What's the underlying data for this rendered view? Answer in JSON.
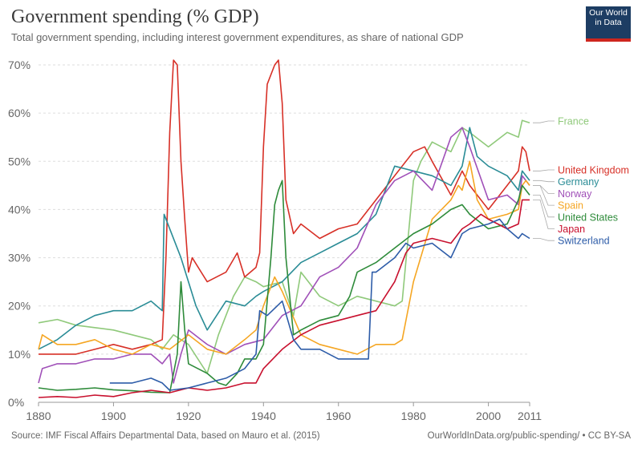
{
  "header": {
    "title": "Government spending (% GDP)",
    "subtitle": "Total government spending, including interest government expenditures, as share of national GDP",
    "logo_line1": "Our World",
    "logo_line2": "in Data"
  },
  "footer": {
    "source": "Source: IMF Fiscal Affairs Departmental Data, based on Mauro et al. (2015)",
    "link": "OurWorldInData.org/public-spending/ • CC BY-SA"
  },
  "colors": {
    "france": "#8fc97a",
    "uk": "#d73027",
    "germany": "#2a8c96",
    "norway": "#a050b8",
    "spain": "#f5a623",
    "us": "#2e8b3a",
    "japan": "#c8102e",
    "switzerland": "#2d5ca8"
  },
  "chart_data": {
    "type": "line",
    "title": "Government spending (% GDP)",
    "subtitle": "Total government spending, including interest government expenditures, as share of national GDP",
    "xlabel": "",
    "ylabel": "",
    "xlim": [
      1880,
      2011
    ],
    "ylim": [
      0,
      70
    ],
    "x_ticks": [
      1880,
      1900,
      1920,
      1940,
      1960,
      1980,
      2000,
      2011
    ],
    "x_tick_labels": [
      "1880",
      "1900",
      "1920",
      "1940",
      "1960",
      "1980",
      "2000",
      "2011"
    ],
    "y_ticks": [
      0,
      10,
      20,
      30,
      40,
      50,
      60,
      70
    ],
    "y_tick_labels": [
      "0%",
      "10%",
      "20%",
      "30%",
      "40%",
      "50%",
      "60%",
      "70%"
    ],
    "grid": "horizontal dashed",
    "series": [
      {
        "name": "France",
        "color": "#8fc97a",
        "points": [
          [
            1880,
            16.5
          ],
          [
            1885,
            17.2
          ],
          [
            1890,
            16
          ],
          [
            1895,
            15.5
          ],
          [
            1900,
            15
          ],
          [
            1905,
            14
          ],
          [
            1910,
            13
          ],
          [
            1913,
            11
          ],
          [
            1916,
            14
          ],
          [
            1920,
            12
          ],
          [
            1925,
            6
          ],
          [
            1928,
            14
          ],
          [
            1930,
            18
          ],
          [
            1932,
            22
          ],
          [
            1935,
            26
          ],
          [
            1938,
            25
          ],
          [
            1940,
            24
          ],
          [
            1945,
            25
          ],
          [
            1948,
            18
          ],
          [
            1950,
            27
          ],
          [
            1955,
            22
          ],
          [
            1960,
            20
          ],
          [
            1965,
            22
          ],
          [
            1970,
            21
          ],
          [
            1975,
            20
          ],
          [
            1977,
            21
          ],
          [
            1980,
            46
          ],
          [
            1982,
            50
          ],
          [
            1985,
            54
          ],
          [
            1990,
            52
          ],
          [
            1993,
            57
          ],
          [
            1995,
            56
          ],
          [
            2000,
            53
          ],
          [
            2005,
            56
          ],
          [
            2008,
            55
          ],
          [
            2009,
            58.5
          ],
          [
            2011,
            58
          ]
        ]
      },
      {
        "name": "United Kingdom",
        "color": "#d73027",
        "points": [
          [
            1880,
            10
          ],
          [
            1890,
            10
          ],
          [
            1900,
            12
          ],
          [
            1905,
            11
          ],
          [
            1910,
            12
          ],
          [
            1913,
            13
          ],
          [
            1914,
            30
          ],
          [
            1915,
            56
          ],
          [
            1916,
            71
          ],
          [
            1917,
            70
          ],
          [
            1918,
            50
          ],
          [
            1919,
            38
          ],
          [
            1920,
            27
          ],
          [
            1921,
            30
          ],
          [
            1925,
            25
          ],
          [
            1930,
            27
          ],
          [
            1933,
            31
          ],
          [
            1935,
            26
          ],
          [
            1938,
            28
          ],
          [
            1939,
            31
          ],
          [
            1940,
            53
          ],
          [
            1941,
            66
          ],
          [
            1943,
            70
          ],
          [
            1944,
            71
          ],
          [
            1945,
            62
          ],
          [
            1946,
            42
          ],
          [
            1948,
            35
          ],
          [
            1950,
            37
          ],
          [
            1955,
            34
          ],
          [
            1960,
            36
          ],
          [
            1965,
            37
          ],
          [
            1970,
            42
          ],
          [
            1975,
            47
          ],
          [
            1980,
            52
          ],
          [
            1983,
            53
          ],
          [
            1985,
            50
          ],
          [
            1990,
            43
          ],
          [
            1993,
            48
          ],
          [
            1995,
            45
          ],
          [
            2000,
            40
          ],
          [
            2005,
            45
          ],
          [
            2008,
            48
          ],
          [
            2009,
            53
          ],
          [
            2010,
            52
          ],
          [
            2011,
            48
          ]
        ]
      },
      {
        "name": "Germany",
        "color": "#2a8c96",
        "points": [
          [
            1880,
            11
          ],
          [
            1885,
            13
          ],
          [
            1890,
            16
          ],
          [
            1895,
            18
          ],
          [
            1900,
            19
          ],
          [
            1905,
            19
          ],
          [
            1910,
            21
          ],
          [
            1913,
            19
          ],
          [
            1913.5,
            39
          ],
          [
            1918,
            30
          ],
          [
            1922,
            20
          ],
          [
            1925,
            15
          ],
          [
            1930,
            21
          ],
          [
            1935,
            20
          ],
          [
            1938,
            22
          ],
          [
            1940,
            23
          ],
          [
            1945,
            25
          ],
          [
            1950,
            29
          ],
          [
            1955,
            31
          ],
          [
            1960,
            33
          ],
          [
            1965,
            35
          ],
          [
            1970,
            39
          ],
          [
            1975,
            49
          ],
          [
            1980,
            48
          ],
          [
            1985,
            47
          ],
          [
            1990,
            45
          ],
          [
            1993,
            49
          ],
          [
            1995,
            57
          ],
          [
            1997,
            51
          ],
          [
            2000,
            49
          ],
          [
            2005,
            47
          ],
          [
            2008,
            44
          ],
          [
            2009,
            48
          ],
          [
            2011,
            46
          ]
        ]
      },
      {
        "name": "Norway",
        "color": "#a050b8",
        "points": [
          [
            1880,
            4
          ],
          [
            1881,
            7
          ],
          [
            1885,
            8
          ],
          [
            1890,
            8
          ],
          [
            1895,
            9
          ],
          [
            1900,
            9
          ],
          [
            1905,
            10
          ],
          [
            1910,
            10
          ],
          [
            1913,
            8
          ],
          [
            1915,
            10
          ],
          [
            1916,
            4
          ],
          [
            1918,
            10
          ],
          [
            1920,
            15
          ],
          [
            1925,
            12
          ],
          [
            1930,
            10
          ],
          [
            1935,
            12
          ],
          [
            1940,
            13
          ],
          [
            1945,
            18
          ],
          [
            1950,
            20
          ],
          [
            1955,
            26
          ],
          [
            1960,
            28
          ],
          [
            1965,
            32
          ],
          [
            1970,
            41
          ],
          [
            1975,
            46
          ],
          [
            1980,
            48
          ],
          [
            1985,
            44
          ],
          [
            1990,
            55
          ],
          [
            1993,
            57
          ],
          [
            1995,
            53
          ],
          [
            2000,
            42
          ],
          [
            2005,
            43
          ],
          [
            2008,
            41
          ],
          [
            2009,
            47
          ],
          [
            2011,
            45
          ]
        ]
      },
      {
        "name": "Spain",
        "color": "#f5a623",
        "points": [
          [
            1880,
            11
          ],
          [
            1881,
            14
          ],
          [
            1885,
            12
          ],
          [
            1890,
            12
          ],
          [
            1895,
            13
          ],
          [
            1900,
            11
          ],
          [
            1905,
            10
          ],
          [
            1910,
            12
          ],
          [
            1915,
            11
          ],
          [
            1920,
            14
          ],
          [
            1925,
            11
          ],
          [
            1930,
            10
          ],
          [
            1935,
            13
          ],
          [
            1938,
            15
          ],
          [
            1940,
            20
          ],
          [
            1943,
            26
          ],
          [
            1945,
            23
          ],
          [
            1950,
            14
          ],
          [
            1955,
            12
          ],
          [
            1960,
            11
          ],
          [
            1965,
            10
          ],
          [
            1970,
            12
          ],
          [
            1975,
            12
          ],
          [
            1977,
            13
          ],
          [
            1980,
            25
          ],
          [
            1985,
            38
          ],
          [
            1990,
            42
          ],
          [
            1992,
            45
          ],
          [
            1993,
            44
          ],
          [
            1995,
            50
          ],
          [
            1997,
            42
          ],
          [
            2000,
            38
          ],
          [
            2005,
            39
          ],
          [
            2008,
            40
          ],
          [
            2009,
            45
          ],
          [
            2010,
            46
          ],
          [
            2011,
            45
          ]
        ]
      },
      {
        "name": "United States",
        "color": "#2e8b3a",
        "points": [
          [
            1880,
            3
          ],
          [
            1885,
            2.5
          ],
          [
            1890,
            2.7
          ],
          [
            1895,
            3
          ],
          [
            1900,
            2.6
          ],
          [
            1905,
            2.4
          ],
          [
            1910,
            2.1
          ],
          [
            1915,
            2
          ],
          [
            1917,
            10
          ],
          [
            1918,
            25
          ],
          [
            1919,
            15
          ],
          [
            1920,
            8
          ],
          [
            1925,
            6
          ],
          [
            1928,
            4
          ],
          [
            1930,
            3.5
          ],
          [
            1933,
            6
          ],
          [
            1935,
            9
          ],
          [
            1938,
            9
          ],
          [
            1940,
            12
          ],
          [
            1942,
            30
          ],
          [
            1943,
            41
          ],
          [
            1944,
            44
          ],
          [
            1945,
            46
          ],
          [
            1946,
            30
          ],
          [
            1948,
            14
          ],
          [
            1950,
            15
          ],
          [
            1955,
            17
          ],
          [
            1960,
            18
          ],
          [
            1963,
            22
          ],
          [
            1965,
            27
          ],
          [
            1970,
            29
          ],
          [
            1975,
            32
          ],
          [
            1980,
            35
          ],
          [
            1985,
            37
          ],
          [
            1990,
            40
          ],
          [
            1993,
            41
          ],
          [
            1995,
            39
          ],
          [
            2000,
            36
          ],
          [
            2005,
            37
          ],
          [
            2008,
            42
          ],
          [
            2009,
            45
          ],
          [
            2011,
            43
          ]
        ]
      },
      {
        "name": "Japan",
        "color": "#c8102e",
        "points": [
          [
            1880,
            1
          ],
          [
            1885,
            1.2
          ],
          [
            1890,
            1
          ],
          [
            1895,
            1.5
          ],
          [
            1900,
            1.2
          ],
          [
            1905,
            2
          ],
          [
            1910,
            2.5
          ],
          [
            1915,
            2
          ],
          [
            1920,
            3
          ],
          [
            1925,
            2.5
          ],
          [
            1930,
            3
          ],
          [
            1935,
            4
          ],
          [
            1938,
            4
          ],
          [
            1940,
            7
          ],
          [
            1945,
            11
          ],
          [
            1950,
            14
          ],
          [
            1955,
            16
          ],
          [
            1960,
            17
          ],
          [
            1965,
            18
          ],
          [
            1970,
            19
          ],
          [
            1975,
            25
          ],
          [
            1978,
            31
          ],
          [
            1980,
            33
          ],
          [
            1985,
            34
          ],
          [
            1990,
            33
          ],
          [
            1993,
            36
          ],
          [
            1995,
            37
          ],
          [
            1998,
            39
          ],
          [
            2000,
            38
          ],
          [
            2005,
            36
          ],
          [
            2008,
            37
          ],
          [
            2009,
            42
          ],
          [
            2011,
            42
          ]
        ]
      },
      {
        "name": "Switzerland",
        "color": "#2d5ca8",
        "points": [
          [
            1899,
            4
          ],
          [
            1905,
            4
          ],
          [
            1910,
            5
          ],
          [
            1913,
            4
          ],
          [
            1915,
            2.5
          ],
          [
            1920,
            3
          ],
          [
            1925,
            4
          ],
          [
            1930,
            5
          ],
          [
            1935,
            7
          ],
          [
            1938,
            10
          ],
          [
            1939,
            19
          ],
          [
            1941,
            18
          ],
          [
            1945,
            21
          ],
          [
            1948,
            13
          ],
          [
            1950,
            11
          ],
          [
            1955,
            11
          ],
          [
            1960,
            9
          ],
          [
            1965,
            9
          ],
          [
            1968,
            9
          ],
          [
            1969,
            27
          ],
          [
            1970,
            27
          ],
          [
            1975,
            30
          ],
          [
            1978,
            33
          ],
          [
            1980,
            32
          ],
          [
            1985,
            33
          ],
          [
            1990,
            30
          ],
          [
            1993,
            35
          ],
          [
            1995,
            36
          ],
          [
            2000,
            37
          ],
          [
            2003,
            38
          ],
          [
            2005,
            36
          ],
          [
            2008,
            34
          ],
          [
            2009,
            35
          ],
          [
            2011,
            34
          ]
        ]
      }
    ],
    "legend": {
      "placement": "right",
      "entries": [
        "France",
        "United Kingdom",
        "Germany",
        "Norway",
        "Spain",
        "United States",
        "Japan",
        "Switzerland"
      ]
    }
  }
}
